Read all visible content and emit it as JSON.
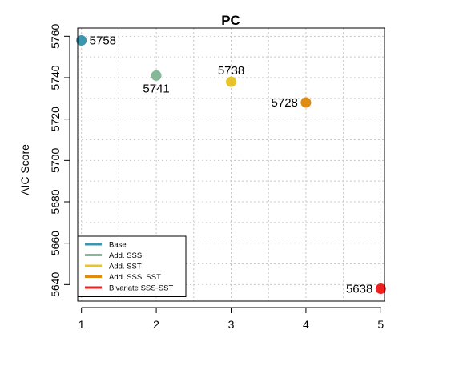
{
  "chart_data": {
    "type": "scatter",
    "title": "PC",
    "xlabel": "",
    "ylabel": "AIC Score",
    "x_ticks": [
      1,
      2,
      3,
      4,
      5
    ],
    "y_ticks": [
      5640,
      5660,
      5680,
      5700,
      5720,
      5740,
      5760
    ],
    "xlim": [
      0.95,
      5.05
    ],
    "ylim": [
      5632,
      5764
    ],
    "grid": true,
    "legend_position": "bottom-left",
    "series": [
      {
        "name": "Base",
        "x": 1,
        "y": 5758,
        "label": "5758",
        "label_pos": "right",
        "color": "#3b96ae"
      },
      {
        "name": "Add. SSS",
        "x": 2,
        "y": 5741,
        "label": "5741",
        "label_pos": "below",
        "color": "#85b896"
      },
      {
        "name": "Add. SST",
        "x": 3,
        "y": 5738,
        "label": "5738",
        "label_pos": "above",
        "color": "#e6c42e"
      },
      {
        "name": "Add. SSS, SST",
        "x": 4,
        "y": 5728,
        "label": "5728",
        "label_pos": "left",
        "color": "#e08c12"
      },
      {
        "name": "Bivariate SSS-SST",
        "x": 5,
        "y": 5638,
        "label": "5638",
        "label_pos": "left",
        "color": "#ee2020"
      }
    ]
  }
}
